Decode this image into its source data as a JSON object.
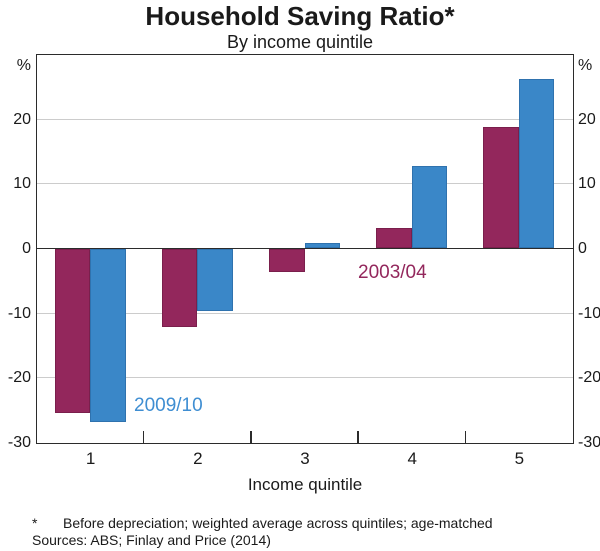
{
  "chart": {
    "title": "Household Saving Ratio*",
    "subtitle": "By income quintile",
    "xlabel": "Income quintile",
    "unit_label": "%",
    "footnote_marker": "*",
    "footnote_text": "Before depreciation; weighted average across quintiles; age-matched",
    "sources_text": "Sources: ABS; Finlay and Price (2014)"
  },
  "chart_data": {
    "type": "bar",
    "title": "Household Saving Ratio*",
    "subtitle": "By income quintile",
    "xlabel": "Income quintile",
    "ylabel": "%",
    "ylabel_right": "%",
    "categories": [
      "1",
      "2",
      "3",
      "4",
      "5"
    ],
    "series": [
      {
        "name": "2003/04",
        "color": "#93275c",
        "edge_color": "#7a1f4c",
        "values": [
          -25.5,
          -12.2,
          -3.7,
          3.2,
          18.8
        ]
      },
      {
        "name": "2009/10",
        "color": "#3a87c8",
        "edge_color": "#2f72ae",
        "values": [
          -26.9,
          -9.6,
          0.8,
          12.7,
          26.2
        ]
      }
    ],
    "ylim": [
      -30,
      30
    ],
    "yticks": [
      20,
      10,
      0,
      -10,
      -20,
      -30
    ],
    "yticks_unlabeled_top": 30,
    "grid": true,
    "zero_line": true,
    "legend_position": "inline-annotations",
    "annotations": [
      {
        "text": "2003/04",
        "color": "#93275c"
      },
      {
        "text": "2009/10",
        "color": "#3f8ed2"
      }
    ],
    "axis_color": "#2b2b2b",
    "gridline_color": "#cccccc"
  }
}
